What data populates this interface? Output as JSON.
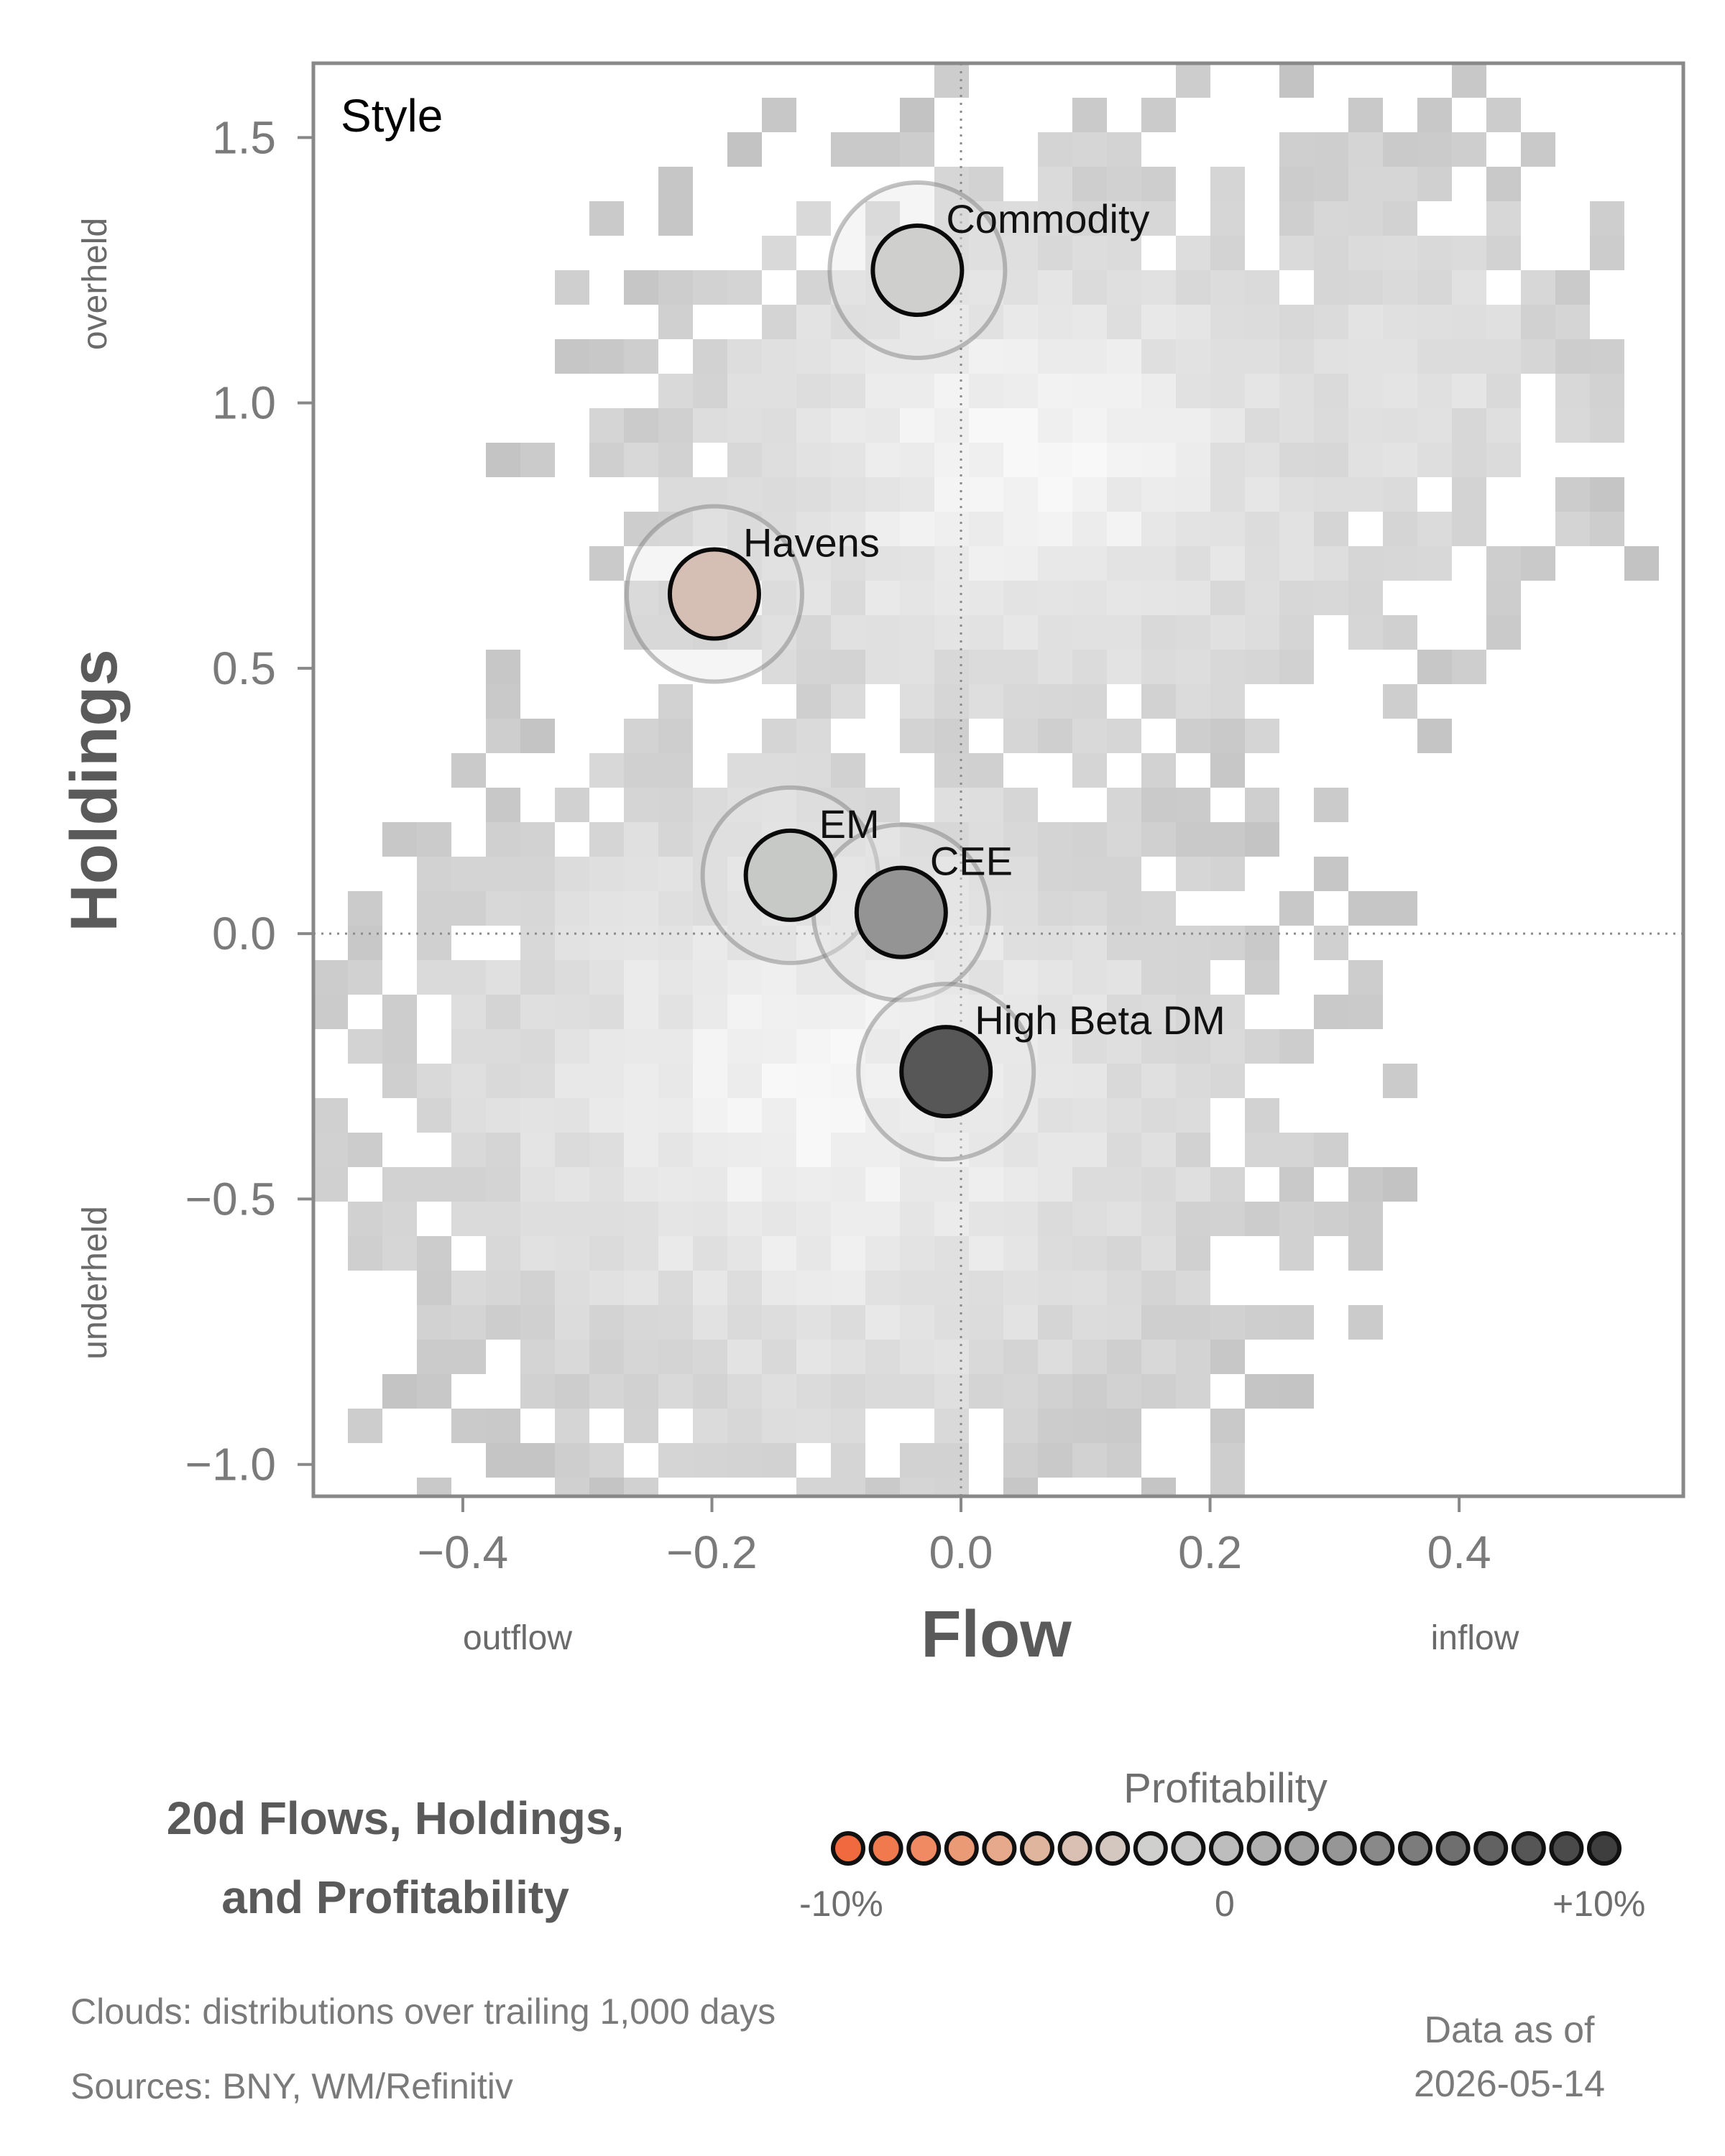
{
  "chart_data": {
    "type": "scatter",
    "panel_label": "Style",
    "xlabel": "Flow",
    "ylabel": "Holdings",
    "xlim": [
      -0.52,
      0.58
    ],
    "ylim": [
      -1.06,
      1.64
    ],
    "x_ticks": [
      "−0.4",
      "−0.2",
      "0.0",
      "0.2",
      "0.4"
    ],
    "x_tick_values": [
      -0.4,
      -0.2,
      0.0,
      0.2,
      0.4
    ],
    "y_ticks": [
      "−1.0",
      "−0.5",
      "0.0",
      "0.5",
      "1.0",
      "1.5"
    ],
    "y_tick_values": [
      -1.0,
      -0.5,
      0.0,
      0.5,
      1.0,
      1.5
    ],
    "x_side_labels": {
      "left": "outflow",
      "right": "inflow"
    },
    "y_side_labels": {
      "top": "overheld",
      "bottom": "underheld"
    },
    "reference_lines": {
      "x": 0.0,
      "y": 0.0
    },
    "background": "grayscale 2D histogram clouds of trailing distributions",
    "points": [
      {
        "label": "Commodity",
        "x": -0.035,
        "y": 1.25,
        "profitability": 0.0,
        "color": "#cfcfcd"
      },
      {
        "label": "Havens",
        "x": -0.198,
        "y": 0.64,
        "profitability": -3.0,
        "color": "#d5bfb5"
      },
      {
        "label": "EM",
        "x": -0.137,
        "y": 0.11,
        "profitability": 0.5,
        "color": "#c7c9c7"
      },
      {
        "label": "CEE",
        "x": -0.048,
        "y": 0.04,
        "profitability": 4.5,
        "color": "#949494"
      },
      {
        "label": "High Beta DM",
        "x": -0.012,
        "y": -0.26,
        "profitability": 9.0,
        "color": "#575757"
      }
    ]
  },
  "legend": {
    "title_line1": "20d Flows, Holdings,",
    "title_line2": "and Profitability",
    "colorbar_title": "Profitability",
    "colorbar_min_label": "-10%",
    "colorbar_mid_label": "0",
    "colorbar_max_label": "+10%",
    "colorbar_colors": [
      "#f0693f",
      "#f07a4e",
      "#ef8a62",
      "#eb9a76",
      "#e6a98b",
      "#dfb59d",
      "#d9c0b2",
      "#d4c7bf",
      "#cfcfcd",
      "#c8c9c8",
      "#bdbdbd",
      "#b0b0b0",
      "#a3a3a3",
      "#969696",
      "#898989",
      "#7c7c7c",
      "#6f6f6f",
      "#626262",
      "#565656",
      "#4a4a4a",
      "#3e3e3e"
    ]
  },
  "footer": {
    "clouds_note": "Clouds:  distributions over trailing 1,000 days",
    "sources": "Sources:  BNY, WM/Refinitiv",
    "data_as_of_label": "Data as of",
    "data_as_of_date": "2026-05-14"
  }
}
